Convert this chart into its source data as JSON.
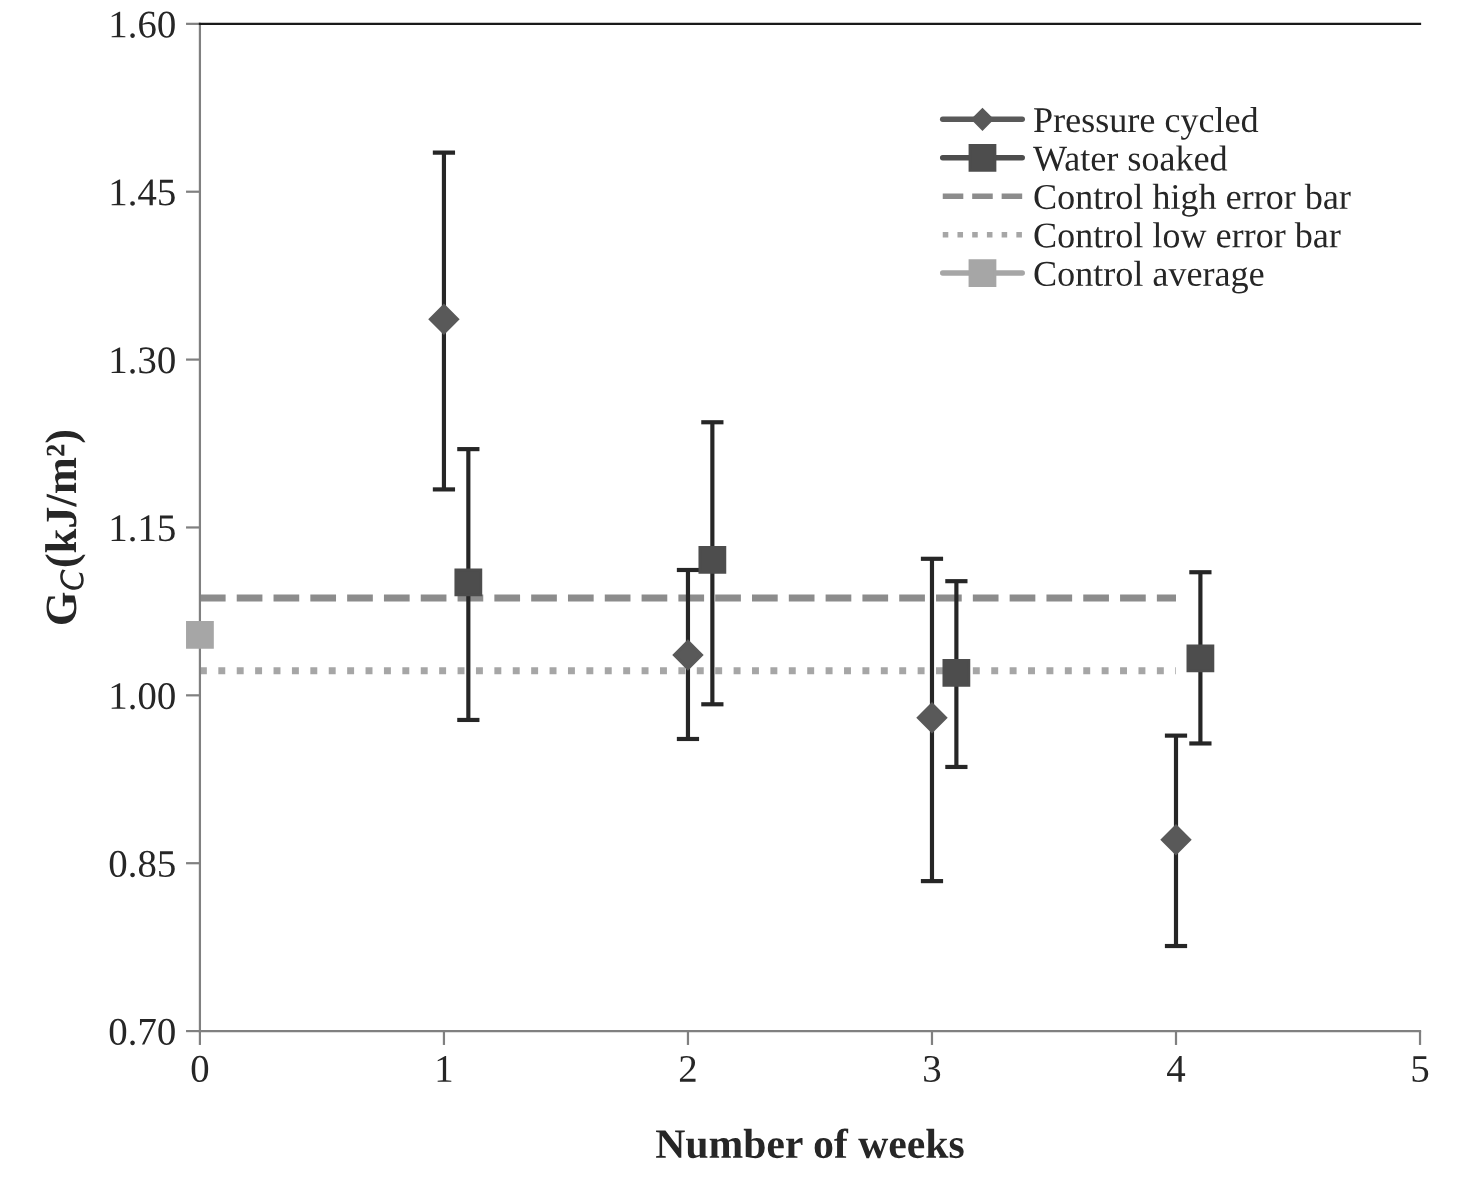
{
  "chart_data": {
    "type": "scatter",
    "xlabel": "Number of weeks",
    "ylabel": "G$_{C}$(kJ/m²)",
    "xlim": [
      0,
      5
    ],
    "xticks": [
      0,
      1,
      2,
      3,
      4,
      5
    ],
    "ylim": [
      0.7,
      1.6
    ],
    "yticks": [
      {
        "value": 0.7,
        "label": "0.70"
      },
      {
        "value": 0.85,
        "label": "0.85"
      },
      {
        "value": 1.0,
        "label": "1.00"
      },
      {
        "value": 1.15,
        "label": "1.15"
      },
      {
        "value": 1.3,
        "label": "1.30"
      },
      {
        "value": 1.45,
        "label": "1.45"
      },
      {
        "value": 1.6,
        "label": "1.60"
      }
    ],
    "grid": false,
    "legend": "top right",
    "series": [
      {
        "name": "Pressure cycled",
        "marker": "diamond",
        "color": "#595959",
        "x": [
          1,
          2,
          3,
          4
        ],
        "values": [
          1.336,
          1.036,
          0.98,
          0.871
        ],
        "errors": [
          [
            1.184,
            1.485
          ],
          [
            0.961,
            1.112
          ],
          [
            0.834,
            1.122
          ],
          [
            0.776,
            0.964
          ]
        ]
      },
      {
        "name": "Water soaked",
        "marker": "square",
        "color": "#4d4d4d",
        "x": [
          1.1,
          2.1,
          3.1,
          4.1
        ],
        "values": [
          1.101,
          1.121,
          1.02,
          1.033
        ],
        "errors": [
          [
            0.978,
            1.22
          ],
          [
            0.992,
            1.244
          ],
          [
            0.936,
            1.102
          ],
          [
            0.957,
            1.11
          ]
        ]
      },
      {
        "name": "Control high error bar",
        "type": "line",
        "line_style": "dashed",
        "color": "#8c8c8c",
        "x": [
          0,
          4
        ],
        "values": [
          1.087,
          1.087
        ]
      },
      {
        "name": "Control low error bar",
        "type": "line",
        "line_style": "dotted",
        "color": "#a6a6a6",
        "x": [
          0,
          4
        ],
        "values": [
          1.022,
          1.022
        ]
      },
      {
        "name": "Control average",
        "marker": "square",
        "color": "#a6a6a6",
        "x": [
          0
        ],
        "values": [
          1.054
        ]
      }
    ]
  }
}
